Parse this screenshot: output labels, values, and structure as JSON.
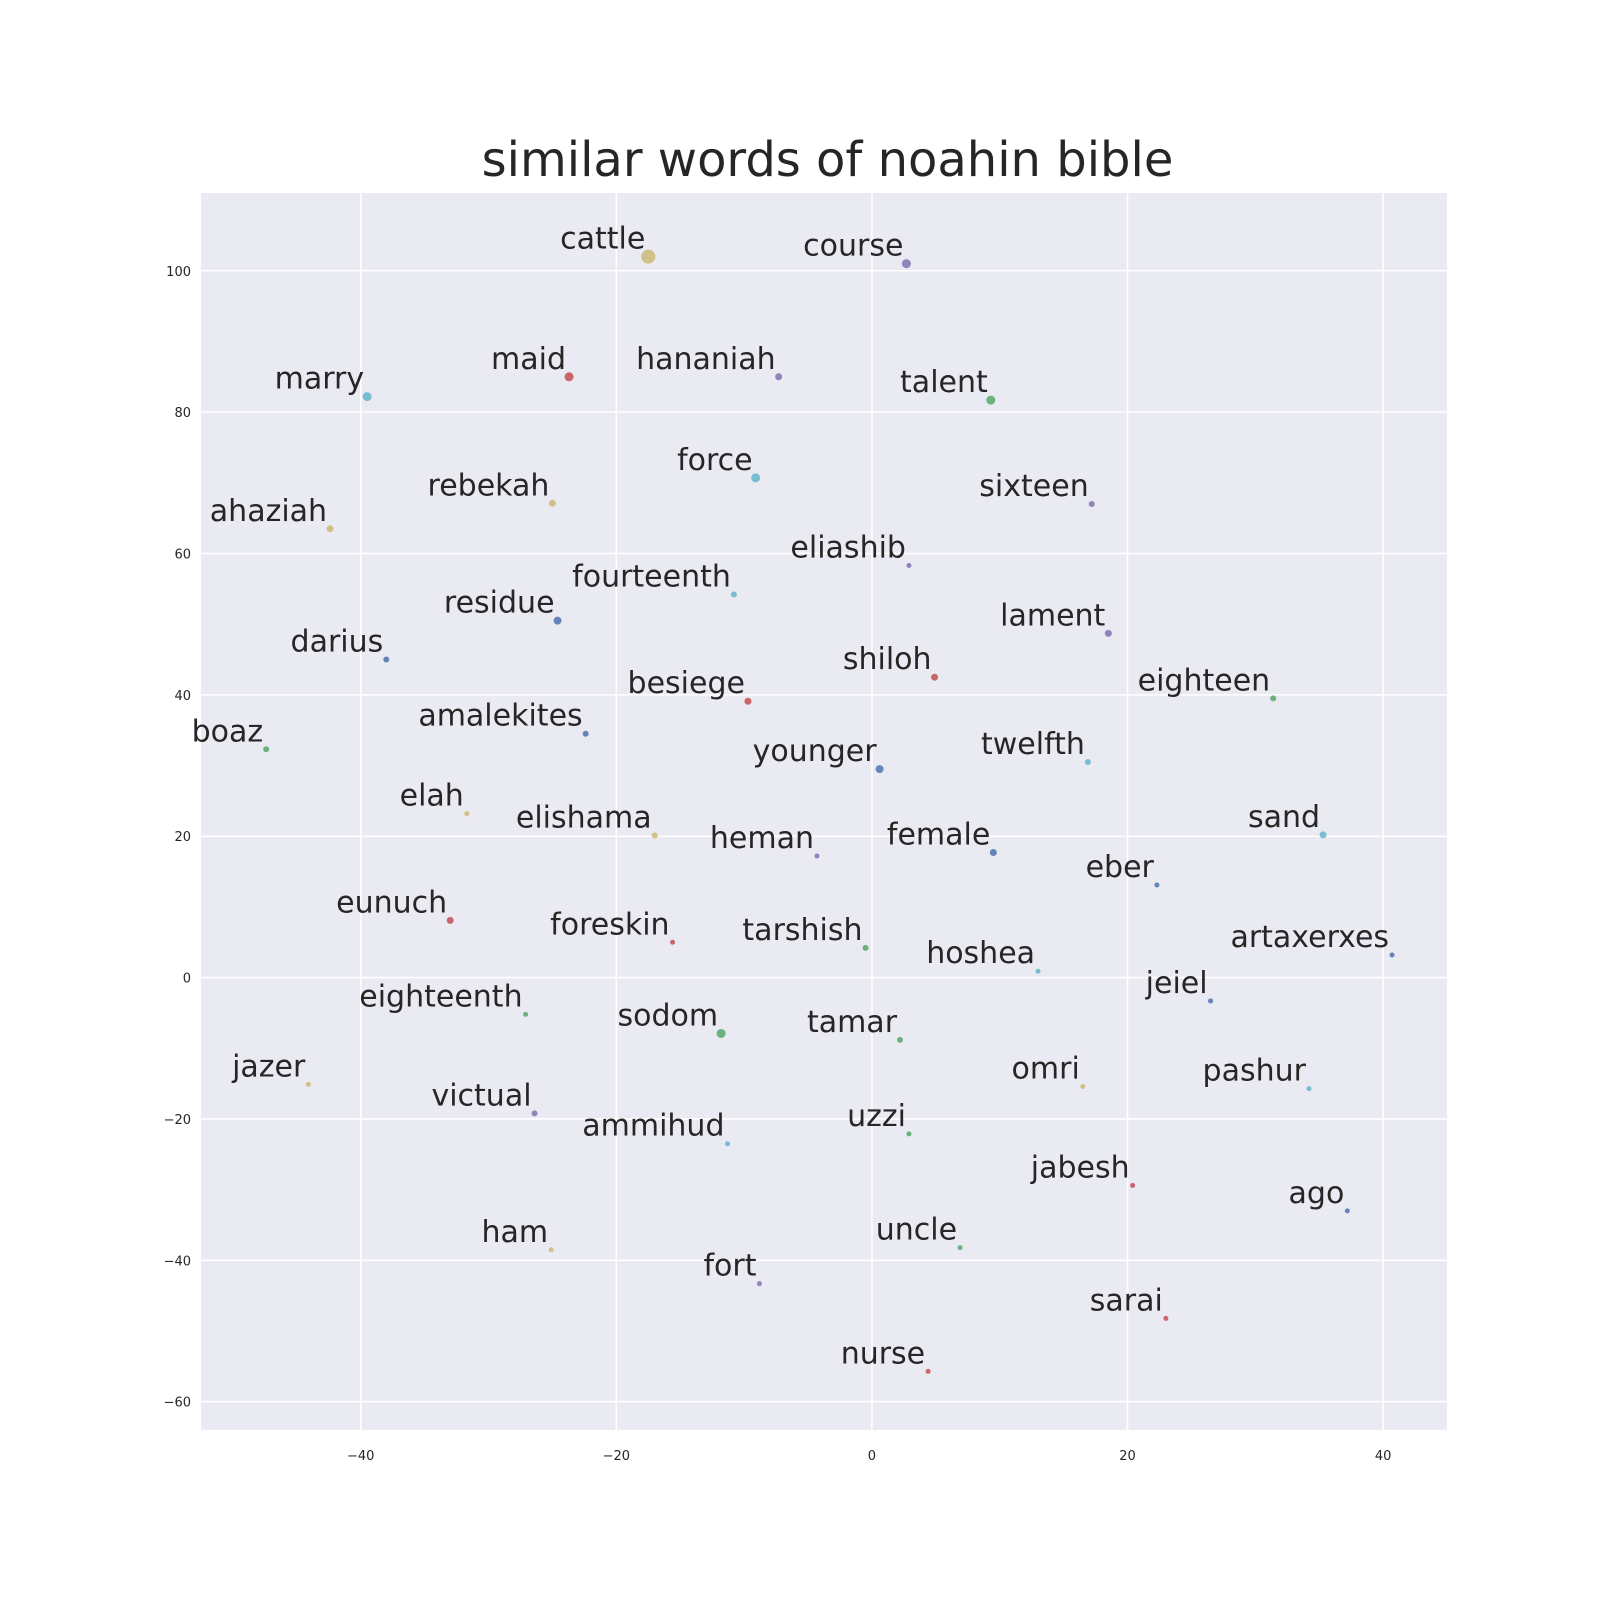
{
  "chart_data": {
    "type": "scatter",
    "title": "similar words of noahin bible",
    "xlabel": "",
    "ylabel": "",
    "xlim": [
      -52.5,
      45
    ],
    "ylim": [
      -64,
      111
    ],
    "xticks": [
      -40,
      -20,
      0,
      20,
      40
    ],
    "yticks": [
      -60,
      -40,
      -20,
      0,
      20,
      40,
      60,
      80,
      100
    ],
    "xtick_labels": [
      "−40",
      "−20",
      "0",
      "20",
      "40"
    ],
    "ytick_labels": [
      "−60",
      "−40",
      "−20",
      "0",
      "20",
      "40",
      "60",
      "80",
      "100"
    ],
    "grid": true,
    "background": "#eaeaf2",
    "grid_color": "#ffffff",
    "palette": {
      "blue": "#4c72b0",
      "green": "#55a868",
      "red": "#c44e52",
      "purple": "#8172b2",
      "yellow": "#ccb974",
      "cyan": "#64b5cd"
    },
    "points": [
      {
        "label": "cattle",
        "x": -17.5,
        "y": 102,
        "color": "#ccb974",
        "size": 14
      },
      {
        "label": "course",
        "x": 2.7,
        "y": 101,
        "color": "#8172b2",
        "size": 9
      },
      {
        "label": "maid",
        "x": -23.7,
        "y": 85,
        "color": "#c44e52",
        "size": 9
      },
      {
        "label": "hananiah",
        "x": -7.3,
        "y": 85,
        "color": "#8172b2",
        "size": 7
      },
      {
        "label": "marry",
        "x": -39.5,
        "y": 82.2,
        "color": "#64b5cd",
        "size": 9
      },
      {
        "label": "talent",
        "x": 9.3,
        "y": 81.7,
        "color": "#55a868",
        "size": 9
      },
      {
        "label": "force",
        "x": -9.1,
        "y": 70.7,
        "color": "#64b5cd",
        "size": 9
      },
      {
        "label": "rebekah",
        "x": -25,
        "y": 67.1,
        "color": "#ccb974",
        "size": 7
      },
      {
        "label": "sixteen",
        "x": 17.2,
        "y": 67,
        "color": "#8172b2",
        "size": 6
      },
      {
        "label": "ahaziah",
        "x": -42.4,
        "y": 63.5,
        "color": "#ccb974",
        "size": 7
      },
      {
        "label": "eliashib",
        "x": 2.9,
        "y": 58.3,
        "color": "#8172b2",
        "size": 5
      },
      {
        "label": "fourteenth",
        "x": -10.8,
        "y": 54.2,
        "color": "#64b5cd",
        "size": 6
      },
      {
        "label": "residue",
        "x": -24.6,
        "y": 50.5,
        "color": "#4c72b0",
        "size": 8
      },
      {
        "label": "lament",
        "x": 18.5,
        "y": 48.7,
        "color": "#8172b2",
        "size": 7
      },
      {
        "label": "darius",
        "x": -38,
        "y": 45,
        "color": "#4c72b0",
        "size": 6
      },
      {
        "label": "shiloh",
        "x": 4.9,
        "y": 42.5,
        "color": "#c44e52",
        "size": 7
      },
      {
        "label": "besiege",
        "x": -9.7,
        "y": 39.1,
        "color": "#c44e52",
        "size": 7
      },
      {
        "label": "eighteen",
        "x": 31.4,
        "y": 39.5,
        "color": "#55a868",
        "size": 6
      },
      {
        "label": "amalekites",
        "x": -22.4,
        "y": 34.5,
        "color": "#4c72b0",
        "size": 6
      },
      {
        "label": "boaz",
        "x": -47.4,
        "y": 32.3,
        "color": "#55a868",
        "size": 6
      },
      {
        "label": "younger",
        "x": 0.6,
        "y": 29.5,
        "color": "#4c72b0",
        "size": 8
      },
      {
        "label": "twelfth",
        "x": 16.9,
        "y": 30.5,
        "color": "#64b5cd",
        "size": 6
      },
      {
        "label": "elah",
        "x": -31.7,
        "y": 23.2,
        "color": "#ccb974",
        "size": 5
      },
      {
        "label": "elishama",
        "x": -17,
        "y": 20.1,
        "color": "#ccb974",
        "size": 6
      },
      {
        "label": "sand",
        "x": 35.3,
        "y": 20.2,
        "color": "#64b5cd",
        "size": 7
      },
      {
        "label": "heman",
        "x": -4.3,
        "y": 17.2,
        "color": "#8172b2",
        "size": 5
      },
      {
        "label": "female",
        "x": 9.5,
        "y": 17.7,
        "color": "#4c72b0",
        "size": 7
      },
      {
        "label": "eber",
        "x": 22.3,
        "y": 13.1,
        "color": "#4c72b0",
        "size": 5
      },
      {
        "label": "eunuch",
        "x": -33,
        "y": 8.1,
        "color": "#c44e52",
        "size": 7
      },
      {
        "label": "foreskin",
        "x": -15.6,
        "y": 5,
        "color": "#c44e52",
        "size": 5
      },
      {
        "label": "tarshish",
        "x": -0.5,
        "y": 4.2,
        "color": "#55a868",
        "size": 6
      },
      {
        "label": "artaxerxes",
        "x": 40.7,
        "y": 3.2,
        "color": "#4c72b0",
        "size": 5
      },
      {
        "label": "hoshea",
        "x": 13,
        "y": 0.9,
        "color": "#64b5cd",
        "size": 5
      },
      {
        "label": "jeiel",
        "x": 26.5,
        "y": -3.3,
        "color": "#4c72b0",
        "size": 5
      },
      {
        "label": "eighteenth",
        "x": -27.1,
        "y": -5.2,
        "color": "#55a868",
        "size": 5
      },
      {
        "label": "sodom",
        "x": -11.8,
        "y": -7.9,
        "color": "#55a868",
        "size": 9
      },
      {
        "label": "tamar",
        "x": 2.2,
        "y": -8.8,
        "color": "#55a868",
        "size": 6
      },
      {
        "label": "jazer",
        "x": -44.1,
        "y": -15.1,
        "color": "#ccb974",
        "size": 5
      },
      {
        "label": "omri",
        "x": 16.5,
        "y": -15.4,
        "color": "#ccb974",
        "size": 5
      },
      {
        "label": "pashur",
        "x": 34.2,
        "y": -15.7,
        "color": "#64b5cd",
        "size": 5
      },
      {
        "label": "victual",
        "x": -26.4,
        "y": -19.2,
        "color": "#8172b2",
        "size": 6
      },
      {
        "label": "ammihud",
        "x": -11.3,
        "y": -23.5,
        "color": "#64b5cd",
        "size": 5
      },
      {
        "label": "uzzi",
        "x": 2.9,
        "y": -22.1,
        "color": "#55a868",
        "size": 5
      },
      {
        "label": "jabesh",
        "x": 20.4,
        "y": -29.4,
        "color": "#c44e52",
        "size": 5
      },
      {
        "label": "ago",
        "x": 37.2,
        "y": -33,
        "color": "#4c72b0",
        "size": 5
      },
      {
        "label": "ham",
        "x": -25.1,
        "y": -38.5,
        "color": "#ccb974",
        "size": 5
      },
      {
        "label": "uncle",
        "x": 6.9,
        "y": -38.2,
        "color": "#55a868",
        "size": 5
      },
      {
        "label": "fort",
        "x": -8.8,
        "y": -43.3,
        "color": "#8172b2",
        "size": 5
      },
      {
        "label": "sarai",
        "x": 23,
        "y": -48.2,
        "color": "#c44e52",
        "size": 5
      },
      {
        "label": "nurse",
        "x": 4.4,
        "y": -55.7,
        "color": "#c44e52",
        "size": 5
      }
    ]
  }
}
